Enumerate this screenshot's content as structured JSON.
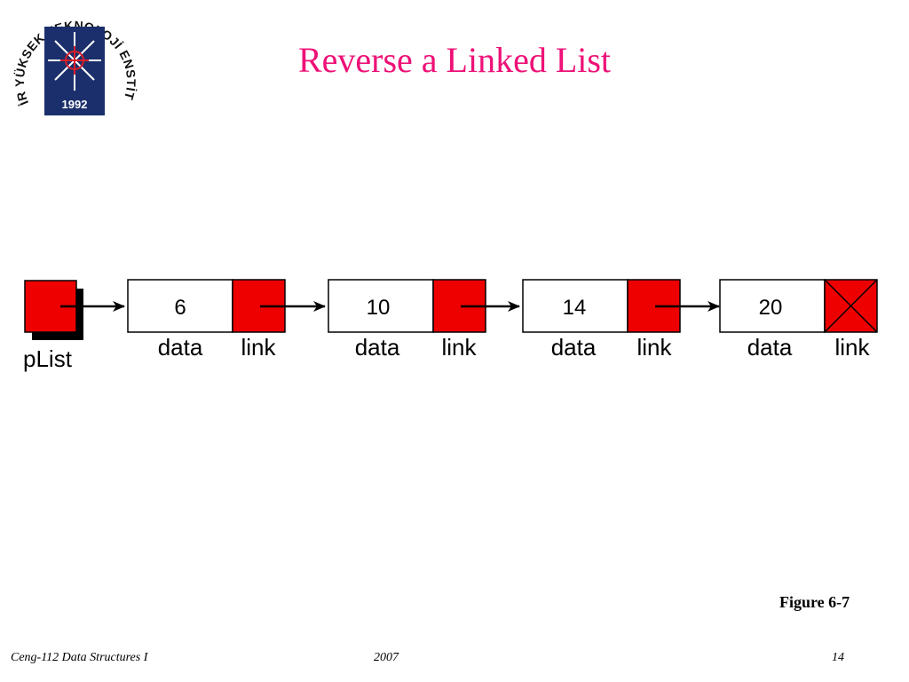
{
  "logo": {
    "top_text": "İZMİR YÜKSEK TEKNOLOJİ ENSTİTÜSÜ",
    "year": "1992"
  },
  "slide": {
    "title": "Reverse a Linked List",
    "figure_caption": "Figure 6-7"
  },
  "diagram": {
    "head_pointer_label": "pList",
    "nodes": [
      {
        "data": "6",
        "data_label": "data",
        "link_label": "link"
      },
      {
        "data": "10",
        "data_label": "data",
        "link_label": "link"
      },
      {
        "data": "14",
        "data_label": "data",
        "link_label": "link"
      },
      {
        "data": "20",
        "data_label": "data",
        "link_label": "link"
      }
    ],
    "colors": {
      "pointer": "#ee0000",
      "outline": "#000000"
    }
  },
  "footer": {
    "course": "Ceng-112 Data Structures I",
    "year": "2007",
    "page": "14"
  }
}
